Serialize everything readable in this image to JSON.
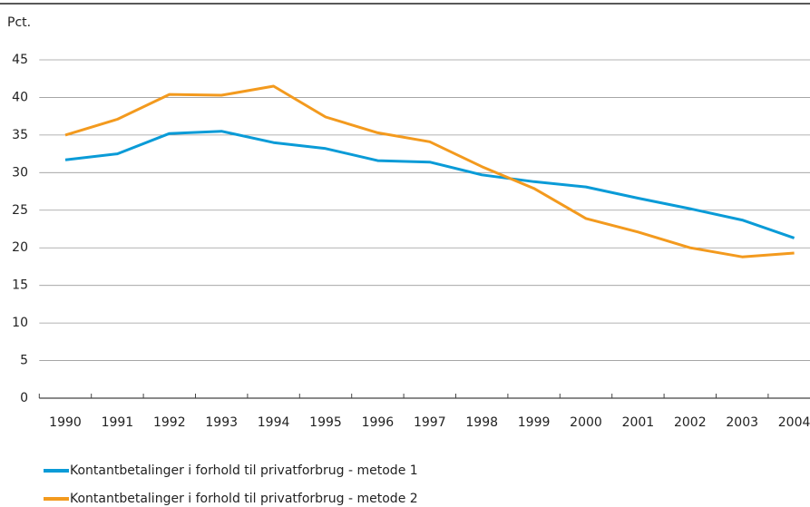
{
  "chart_data": {
    "type": "line",
    "y_axis_label": "Pct.",
    "categories": [
      "1990",
      "1991",
      "1992",
      "1993",
      "1994",
      "1995",
      "1996",
      "1997",
      "1998",
      "1999",
      "2000",
      "2001",
      "2002",
      "2003",
      "2004"
    ],
    "series": [
      {
        "name": "Kontantbetalinger i forhold til privatforbrug - metode 1",
        "color": "#0a9bd7",
        "values": [
          31.7,
          32.5,
          35.2,
          35.5,
          34.0,
          33.2,
          31.6,
          31.4,
          29.7,
          28.8,
          28.1,
          26.6,
          25.2,
          23.7,
          21.3
        ]
      },
      {
        "name": "Kontantbetalinger i forhold til privatforbrug - metode 2",
        "color": "#f39a1e",
        "values": [
          35.0,
          37.1,
          40.4,
          40.3,
          41.5,
          37.4,
          35.3,
          34.1,
          30.8,
          27.9,
          23.9,
          22.1,
          20.0,
          18.8,
          19.3
        ]
      }
    ],
    "ylim": [
      0,
      45
    ],
    "yticks": [
      0,
      5,
      10,
      15,
      20,
      25,
      30,
      35,
      40,
      45
    ],
    "grid": true
  }
}
